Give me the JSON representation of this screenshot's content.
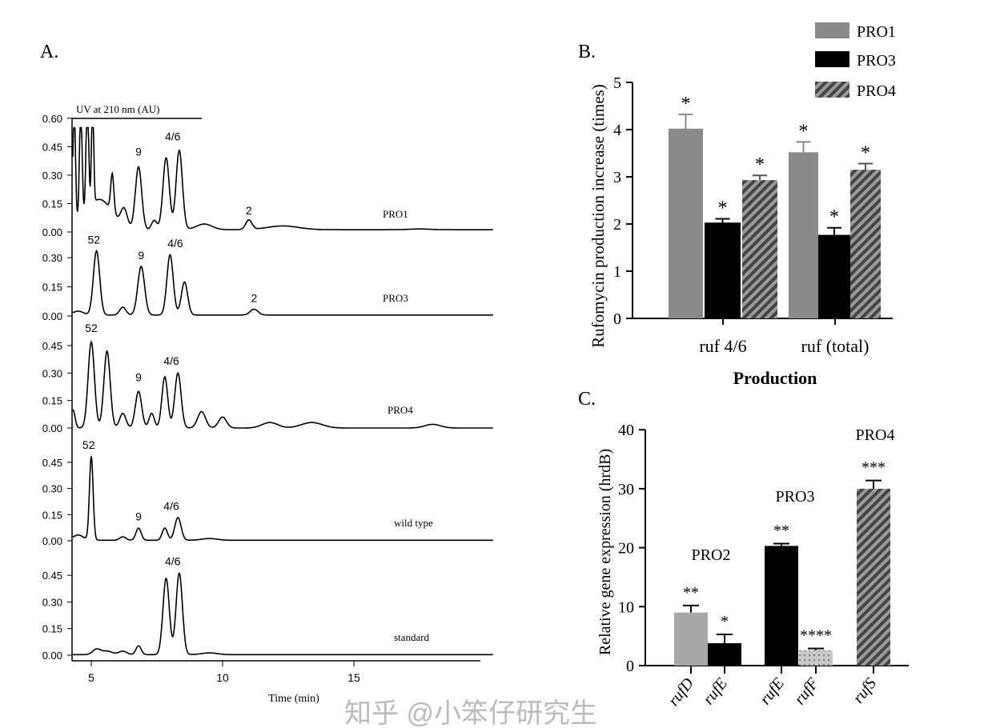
{
  "watermark": "知乎 @小笨仔研究生",
  "chart_data": [
    {
      "panel": "A.",
      "type": "line",
      "ylabel": "UV at 210 nm (AU)",
      "xlabel": "Time (min)",
      "xticks": [
        5,
        10,
        15
      ],
      "xlim": [
        4.3,
        20.3
      ],
      "traces": [
        {
          "name": "PRO1",
          "yticks": [
            "0.60",
            "0.45",
            "0.30",
            "0.15",
            "0.00"
          ],
          "ymax": 0.6,
          "clip": 0.55,
          "peaks": [
            [
              4.35,
              0.6,
              0.05
            ],
            [
              4.6,
              0.6,
              0.05
            ],
            [
              4.85,
              0.6,
              0.05
            ],
            [
              5.05,
              0.6,
              0.04
            ],
            [
              5.3,
              0.16,
              0.5
            ],
            [
              5.8,
              0.2,
              0.06
            ],
            [
              6.25,
              0.09,
              0.12
            ],
            [
              6.8,
              0.33,
              0.12
            ],
            [
              7.4,
              0.05,
              0.1
            ],
            [
              7.85,
              0.38,
              0.12
            ],
            [
              8.35,
              0.42,
              0.12
            ],
            [
              9.3,
              0.03,
              0.3
            ],
            [
              11.0,
              0.05,
              0.12
            ],
            [
              12.3,
              0.02,
              0.6
            ],
            [
              17.5,
              0.004,
              0.4
            ]
          ],
          "baseline": 0.012,
          "labels": [
            {
              "text": "9",
              "t": 6.8,
              "v": 0.37
            },
            {
              "text": "4/6",
              "t": 8.1,
              "v": 0.45
            },
            {
              "text": "2",
              "t": 11.0,
              "v": 0.06
            }
          ]
        },
        {
          "name": "PRO3",
          "yticks": [
            "0.30",
            "0.15",
            "0.00"
          ],
          "ymax": 0.3,
          "clip": 0.35,
          "peaks": [
            [
              4.5,
              0.02,
              0.2
            ],
            [
              5.2,
              0.33,
              0.12
            ],
            [
              6.2,
              0.04,
              0.12
            ],
            [
              6.9,
              0.25,
              0.13
            ],
            [
              8.0,
              0.31,
              0.12
            ],
            [
              8.55,
              0.17,
              0.12
            ],
            [
              11.2,
              0.03,
              0.15
            ]
          ],
          "baseline": 0.005,
          "labels": [
            {
              "text": "52",
              "t": 5.1,
              "v": 0.34
            },
            {
              "text": "9",
              "t": 6.9,
              "v": 0.26
            },
            {
              "text": "4/6",
              "t": 8.2,
              "v": 0.32
            },
            {
              "text": "2",
              "t": 11.2,
              "v": 0.04
            }
          ]
        },
        {
          "name": "PRO4",
          "yticks": [
            "0.45",
            "0.30",
            "0.15",
            "0.00"
          ],
          "ymax": 0.45,
          "clip": 0.5,
          "peaks": [
            [
              4.3,
              0.1,
              0.08
            ],
            [
              5.0,
              0.47,
              0.12
            ],
            [
              5.6,
              0.42,
              0.12
            ],
            [
              6.2,
              0.08,
              0.12
            ],
            [
              6.8,
              0.2,
              0.12
            ],
            [
              7.3,
              0.08,
              0.1
            ],
            [
              7.8,
              0.28,
              0.11
            ],
            [
              8.3,
              0.3,
              0.12
            ],
            [
              9.2,
              0.09,
              0.15
            ],
            [
              10.0,
              0.06,
              0.15
            ],
            [
              11.8,
              0.03,
              0.3
            ],
            [
              13.4,
              0.03,
              0.4
            ],
            [
              18.0,
              0.02,
              0.3
            ]
          ],
          "baseline": 0.0,
          "labels": [
            {
              "text": "52",
              "t": 5.0,
              "v": 0.49
            },
            {
              "text": "9",
              "t": 6.8,
              "v": 0.22
            },
            {
              "text": "4/6",
              "t": 8.05,
              "v": 0.31
            }
          ]
        },
        {
          "name": "wild type",
          "yticks": [
            "0.45",
            "0.30",
            "0.15",
            "0.00"
          ],
          "ymax": 0.45,
          "clip": 0.5,
          "peaks": [
            [
              4.5,
              0.03,
              0.2
            ],
            [
              5.0,
              0.48,
              0.07
            ],
            [
              6.2,
              0.02,
              0.12
            ],
            [
              6.8,
              0.07,
              0.1
            ],
            [
              7.8,
              0.07,
              0.1
            ],
            [
              8.3,
              0.13,
              0.12
            ],
            [
              9.5,
              0.01,
              0.3
            ]
          ],
          "baseline": 0.003,
          "labels": [
            {
              "text": "52",
              "t": 4.9,
              "v": 0.49
            },
            {
              "text": "9",
              "t": 6.8,
              "v": 0.08
            },
            {
              "text": "4/6",
              "t": 8.05,
              "v": 0.14
            }
          ]
        },
        {
          "name": "standard",
          "yticks": [
            "0.45",
            "0.30",
            "0.15",
            "0.00"
          ],
          "ymax": 0.45,
          "clip": 0.5,
          "peaks": [
            [
              5.2,
              0.03,
              0.15
            ],
            [
              5.6,
              0.02,
              0.2
            ],
            [
              6.2,
              0.02,
              0.15
            ],
            [
              6.8,
              0.05,
              0.1
            ],
            [
              7.85,
              0.43,
              0.12
            ],
            [
              8.35,
              0.46,
              0.12
            ],
            [
              9.5,
              0.01,
              0.3
            ]
          ],
          "baseline": 0.003,
          "labels": [
            {
              "text": "4/6",
              "t": 8.1,
              "v": 0.47
            }
          ]
        }
      ]
    },
    {
      "panel": "B.",
      "type": "bar",
      "ylabel": "Rufomycin production increase (times)",
      "xlabel": "Production",
      "ylim": [
        0,
        5
      ],
      "yticks": [
        0,
        1,
        2,
        3,
        4,
        5
      ],
      "categories": [
        "ruf 4/6",
        "ruf (total)"
      ],
      "series": [
        {
          "name": "PRO1",
          "color": "#8a8a8a",
          "fill": "solid",
          "values": [
            4.02,
            3.52
          ],
          "errors": [
            0.3,
            0.22
          ],
          "sig": [
            "*",
            "*"
          ]
        },
        {
          "name": "PRO3",
          "color": "#000000",
          "fill": "solid",
          "values": [
            2.03,
            1.77
          ],
          "errors": [
            0.08,
            0.15
          ],
          "sig": [
            "*",
            "*"
          ]
        },
        {
          "name": "PRO4",
          "color": "#555555",
          "fill": "hatch",
          "values": [
            2.93,
            3.15
          ],
          "errors": [
            0.1,
            0.13
          ],
          "sig": [
            "*",
            "*"
          ]
        }
      ],
      "legend": "top-right"
    },
    {
      "panel": "C.",
      "type": "bar",
      "ylabel": "Relative gene expression (hrdB)",
      "ylabel_italic": "hrdB",
      "ylim": [
        0,
        40
      ],
      "yticks": [
        0,
        10,
        20,
        30,
        40
      ],
      "bars": [
        {
          "label": "rufD",
          "group": "PRO2",
          "value": 9.0,
          "error": 1.2,
          "sig": "**",
          "fill": "light"
        },
        {
          "label": "rufE",
          "group": "PRO2",
          "value": 3.8,
          "error": 1.5,
          "sig": "*",
          "fill": "black"
        },
        {
          "label": "rufE",
          "group": "PRO3",
          "value": 20.3,
          "error": 0.4,
          "sig": "**",
          "fill": "black"
        },
        {
          "label": "rufF",
          "group": "PRO3",
          "value": 2.6,
          "error": 0.3,
          "sig": "****",
          "fill": "dots"
        },
        {
          "label": "rufS",
          "group": "PRO4",
          "value": 30.0,
          "error": 1.4,
          "sig": "***",
          "fill": "hatch"
        }
      ],
      "groups": [
        "PRO2",
        "PRO3",
        "PRO4"
      ]
    }
  ]
}
